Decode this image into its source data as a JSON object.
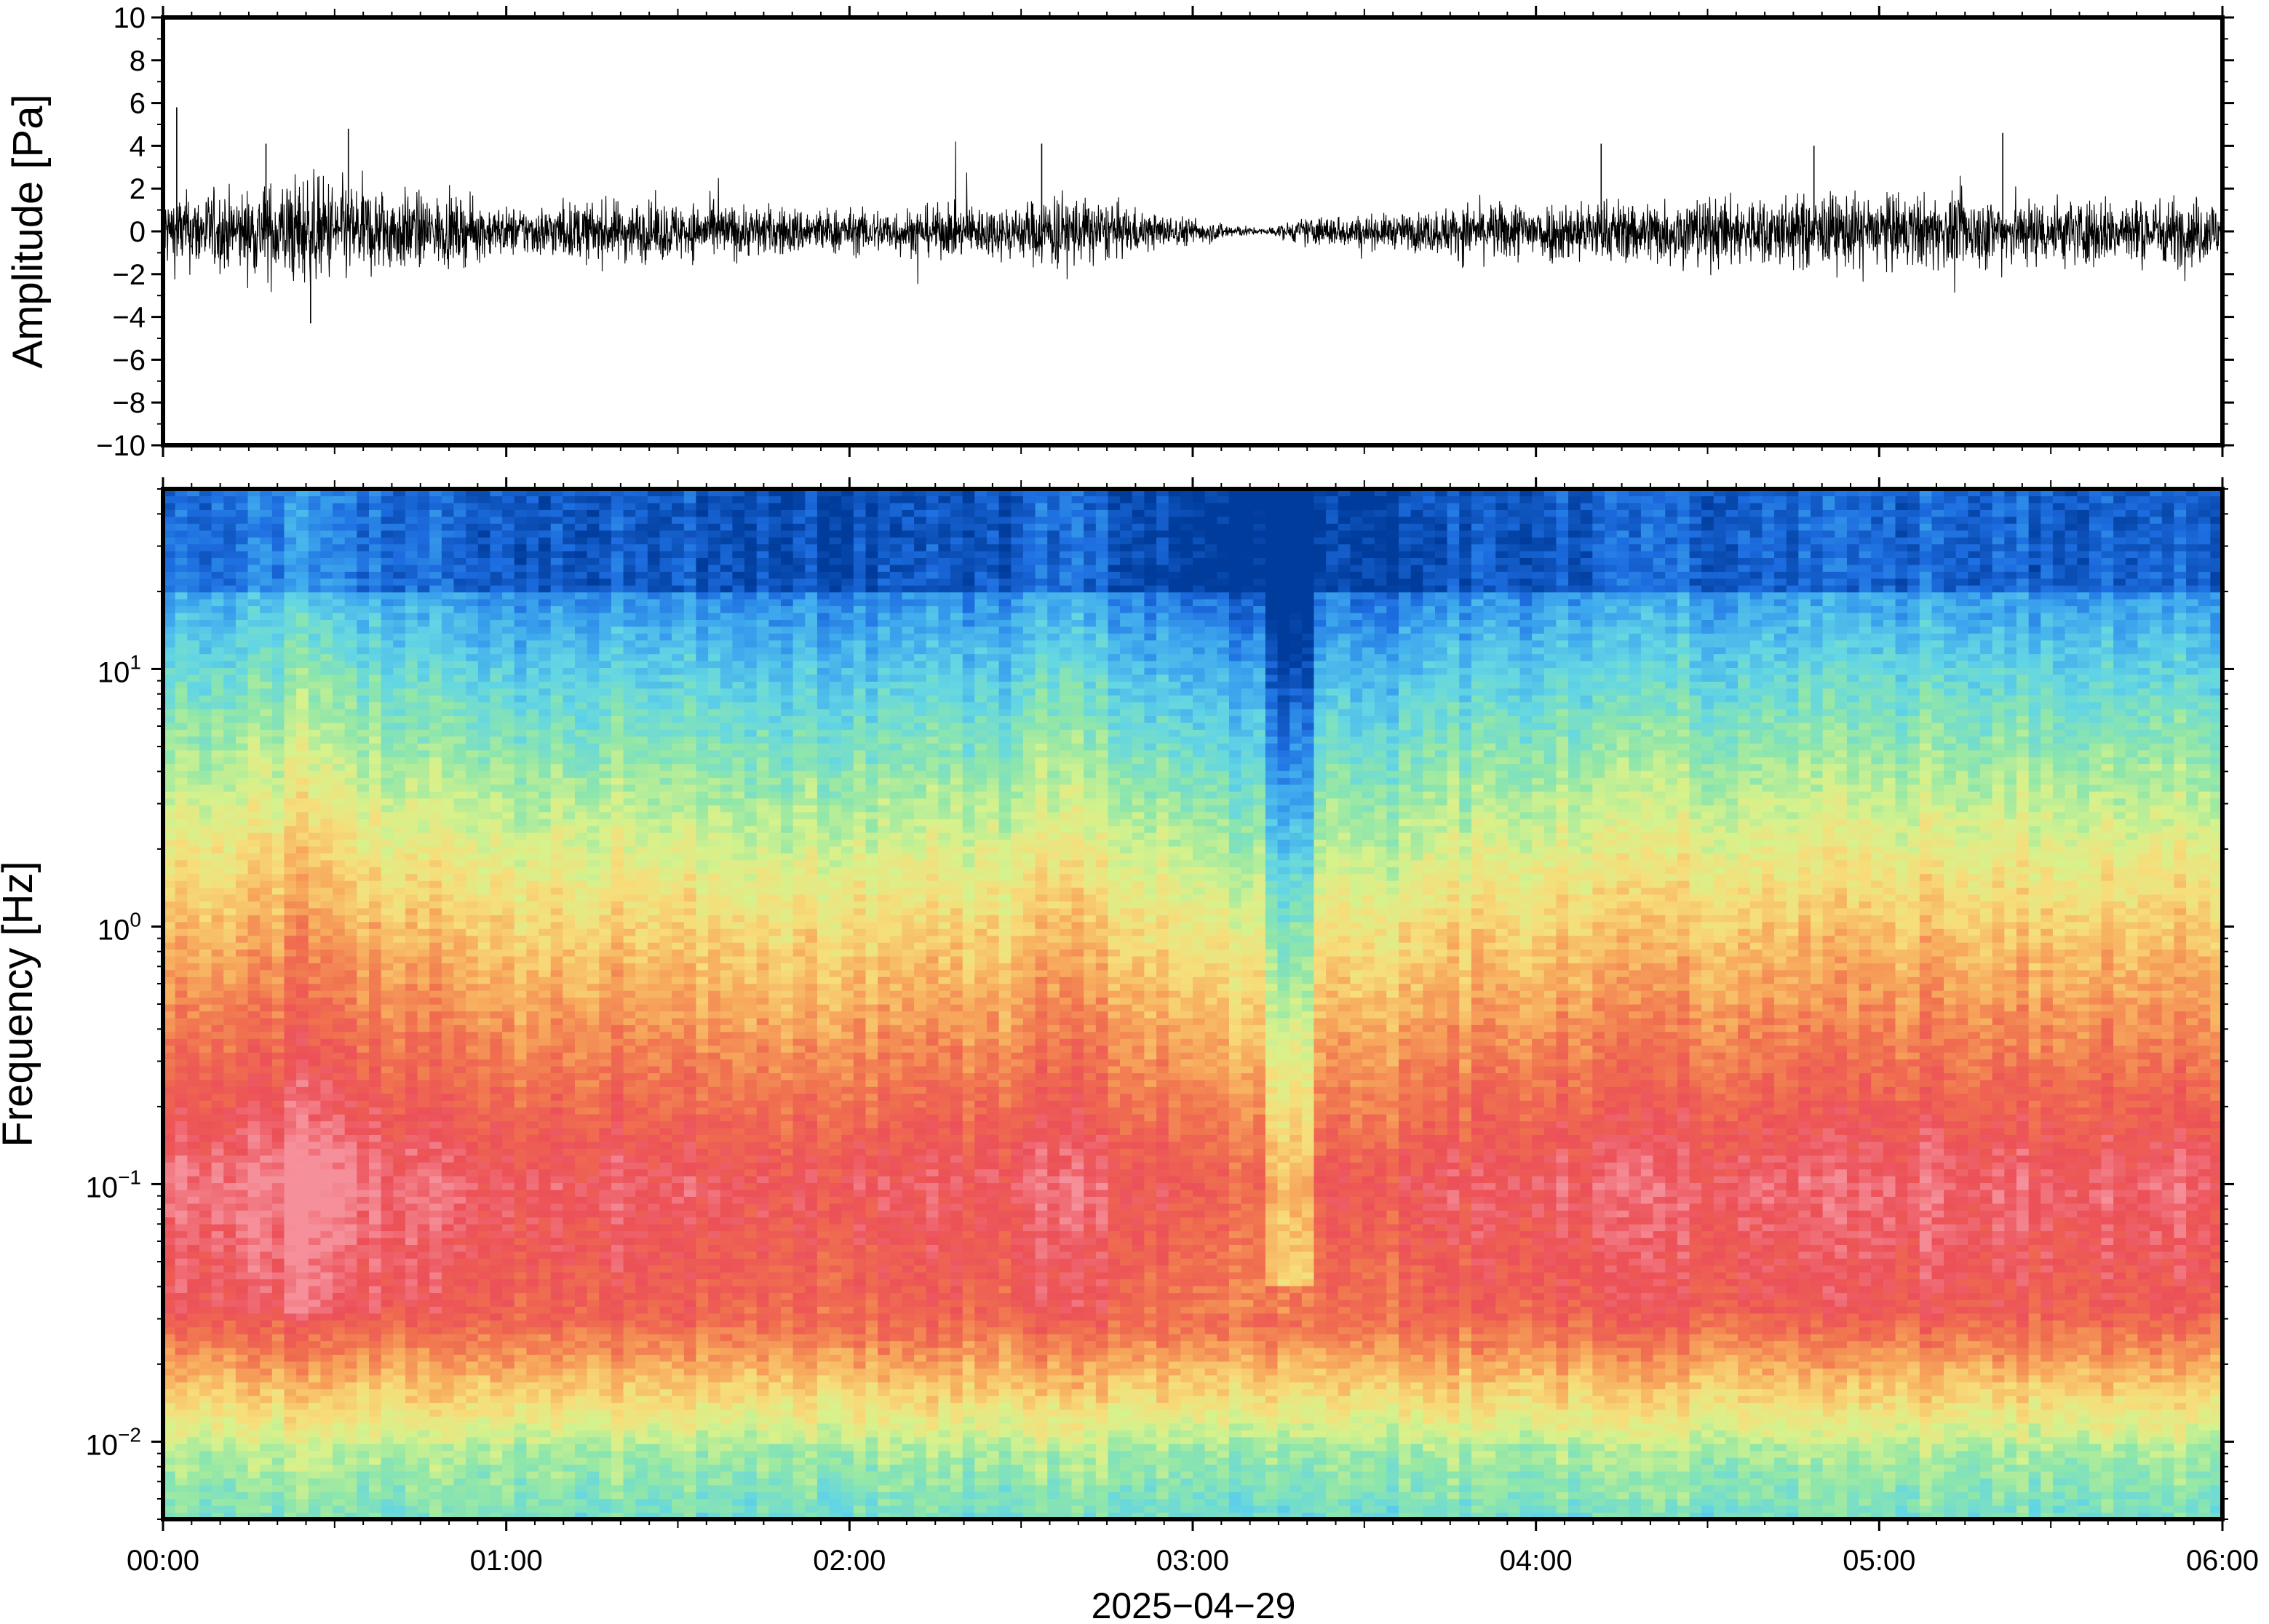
{
  "chart_data": [
    {
      "type": "line",
      "ylabel": "Amplitude [Pa]",
      "ylim": [
        -10,
        10
      ],
      "y_ticks": [
        "10",
        "8",
        "6",
        "4",
        "2",
        "0",
        "−2",
        "−4",
        "−6",
        "−8",
        "−10"
      ],
      "y_tick_values": [
        10,
        8,
        6,
        4,
        2,
        0,
        -2,
        -4,
        -6,
        -8,
        -10
      ],
      "xlim": [
        "00:00",
        "06:00"
      ],
      "grid": false,
      "series": [
        {
          "color": "#000000",
          "envelope_hours": [
            0.0,
            0.25,
            0.4,
            0.5,
            1.0,
            1.3,
            1.5,
            2.0,
            2.5,
            2.6,
            2.9,
            3.0,
            3.2,
            3.35,
            3.6,
            3.8,
            4.0,
            4.5,
            5.0,
            5.5,
            6.0
          ],
          "envelope_amplitude_pa": [
            2.2,
            2.4,
            3.4,
            3.0,
            1.4,
            1.8,
            1.7,
            1.3,
            1.6,
            2.4,
            1.0,
            0.8,
            0.15,
            0.9,
            1.0,
            1.6,
            1.8,
            2.0,
            2.2,
            2.0,
            2.0
          ],
          "peaks_hours": [
            0.04,
            0.3,
            0.43,
            0.54,
            2.56,
            4.19,
            4.81,
            5.36
          ],
          "peaks_pa": [
            5.8,
            4.1,
            -4.3,
            4.8,
            4.1,
            4.1,
            4.0,
            4.6
          ]
        }
      ]
    },
    {
      "type": "heatmap",
      "ylabel": "Frequency [Hz]",
      "xlabel": "2025−04−29",
      "y_scale": "log",
      "ylim": [
        0.005,
        50
      ],
      "y_ticks": [
        {
          "base": "10",
          "exp": "1",
          "value": 10
        },
        {
          "base": "10",
          "exp": "0",
          "value": 1
        },
        {
          "base": "10",
          "exp": "−1",
          "value": 0.1
        },
        {
          "base": "10",
          "exp": "−2",
          "value": 0.01
        }
      ],
      "x_ticks": [
        "00:00",
        "01:00",
        "02:00",
        "03:00",
        "04:00",
        "05:00",
        "06:00"
      ],
      "x_tick_hours": [
        0,
        1,
        2,
        3,
        4,
        5,
        6
      ],
      "colormap": [
        "#003c9c",
        "#1d6de0",
        "#3ea9ee",
        "#63d6e4",
        "#8ee6aa",
        "#d6f28c",
        "#f7dd7a",
        "#f7a95c",
        "#f0704f",
        "#ec5058",
        "#f5909a"
      ],
      "quiet_interval_hours": [
        3.2,
        3.35
      ],
      "grid": false
    }
  ]
}
